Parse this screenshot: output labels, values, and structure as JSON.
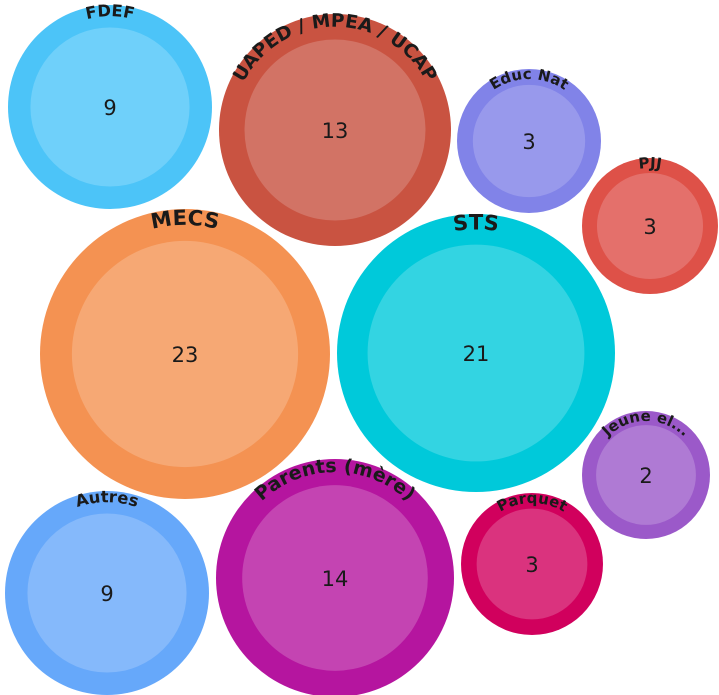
{
  "chart_data": {
    "type": "bubble",
    "bubbles": [
      {
        "label": "FDEF",
        "value": 9,
        "color": "#4cc4f8",
        "inner_color": "#6fd0fa"
      },
      {
        "label": "UAPED / MPEA / UCAP",
        "value": 13,
        "color": "#c95341",
        "inner_color": "#d27365"
      },
      {
        "label": "Educ Nat",
        "value": 3,
        "color": "#8183e8",
        "inner_color": "#9899ec"
      },
      {
        "label": "PJJ",
        "value": 3,
        "color": "#de5148",
        "inner_color": "#e4706b"
      },
      {
        "label": "MECS",
        "value": 23,
        "color": "#f49252",
        "inner_color": "#f6a874"
      },
      {
        "label": "STS",
        "value": 21,
        "color": "#00c9da",
        "inner_color": "#33d4e2"
      },
      {
        "label": "Jeune el...",
        "value": 2,
        "color": "#9b59c9",
        "inner_color": "#af7ad4"
      },
      {
        "label": "Autres",
        "value": 9,
        "color": "#66a8fa",
        "inner_color": "#85b9fb"
      },
      {
        "label": "Parents (mère)",
        "value": 14,
        "color": "#b5159f",
        "inner_color": "#c444b2"
      },
      {
        "label": "Parquet",
        "value": 3,
        "color": "#d1005d",
        "inner_color": "#da337e"
      }
    ]
  }
}
